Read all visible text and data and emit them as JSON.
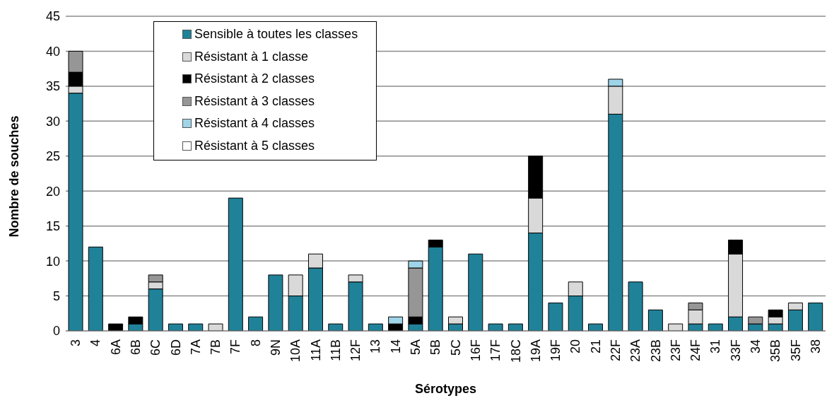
{
  "chart_data": {
    "type": "bar",
    "stacked": true,
    "xlabel": "Sérotypes",
    "ylabel": "Nombre de souches",
    "categories": [
      "3",
      "4",
      "6A",
      "6B",
      "6C",
      "6D",
      "7A",
      "7B",
      "7F",
      "8",
      "9N",
      "10A",
      "11A",
      "11B",
      "12F",
      "13",
      "14",
      "5A",
      "5B",
      "5C",
      "16F",
      "17F",
      "18C",
      "19A",
      "19F",
      "20",
      "21",
      "22F",
      "23A",
      "23B",
      "23F",
      "24F",
      "31",
      "33F",
      "34",
      "35B",
      "35F",
      "38"
    ],
    "series": [
      {
        "name": "Sensible à toutes les classes",
        "color": "#1f8299",
        "values": [
          34,
          12,
          0,
          1,
          6,
          1,
          1,
          0,
          19,
          2,
          8,
          5,
          9,
          1,
          7,
          1,
          0,
          1,
          12,
          1,
          11,
          1,
          1,
          14,
          4,
          5,
          1,
          31,
          7,
          3,
          0,
          1,
          1,
          2,
          1,
          1,
          3,
          4
        ]
      },
      {
        "name": "Résistant à 1 classe",
        "color": "#d9d9d9",
        "values": [
          1,
          0,
          0,
          0,
          1,
          0,
          0,
          1,
          0,
          0,
          0,
          3,
          2,
          0,
          1,
          0,
          0,
          0,
          0,
          1,
          0,
          0,
          0,
          5,
          0,
          2,
          0,
          4,
          0,
          0,
          1,
          2,
          0,
          9,
          0,
          1,
          1,
          0
        ]
      },
      {
        "name": "Résistant à 2 classes",
        "color": "#000000",
        "values": [
          2,
          0,
          1,
          1,
          0,
          0,
          0,
          0,
          0,
          0,
          0,
          0,
          0,
          0,
          0,
          0,
          1,
          1,
          1,
          0,
          0,
          0,
          0,
          6,
          0,
          0,
          0,
          0,
          0,
          0,
          0,
          0,
          0,
          2,
          0,
          1,
          0,
          0
        ]
      },
      {
        "name": "Résistant à 3 classes",
        "color": "#969696",
        "values": [
          3,
          0,
          0,
          0,
          1,
          0,
          0,
          0,
          0,
          0,
          0,
          0,
          0,
          0,
          0,
          0,
          0,
          7,
          0,
          0,
          0,
          0,
          0,
          0,
          0,
          0,
          0,
          0,
          0,
          0,
          0,
          1,
          0,
          0,
          1,
          0,
          0,
          0
        ]
      },
      {
        "name": "Résistant à 4 classes",
        "color": "#9fd3e8",
        "values": [
          0,
          0,
          0,
          0,
          0,
          0,
          0,
          0,
          0,
          0,
          0,
          0,
          0,
          0,
          0,
          0,
          1,
          1,
          0,
          0,
          0,
          0,
          0,
          0,
          0,
          0,
          0,
          1,
          0,
          0,
          0,
          0,
          0,
          0,
          0,
          0,
          0,
          0
        ]
      },
      {
        "name": "Résistant à 5 classes",
        "color": "#ffffff",
        "values": [
          0,
          0,
          0,
          0,
          0,
          0,
          0,
          0,
          0,
          0,
          0,
          0,
          0,
          0,
          0,
          0,
          0,
          0,
          0,
          0,
          0,
          0,
          0,
          0,
          0,
          0,
          0,
          0,
          0,
          0,
          0,
          0,
          0,
          0,
          0,
          0,
          0,
          0
        ]
      }
    ],
    "ylim": [
      0,
      45
    ],
    "yticks": [
      0,
      5,
      10,
      15,
      20,
      25,
      30,
      35,
      40,
      45
    ],
    "grid": "y",
    "legend": "top left"
  }
}
